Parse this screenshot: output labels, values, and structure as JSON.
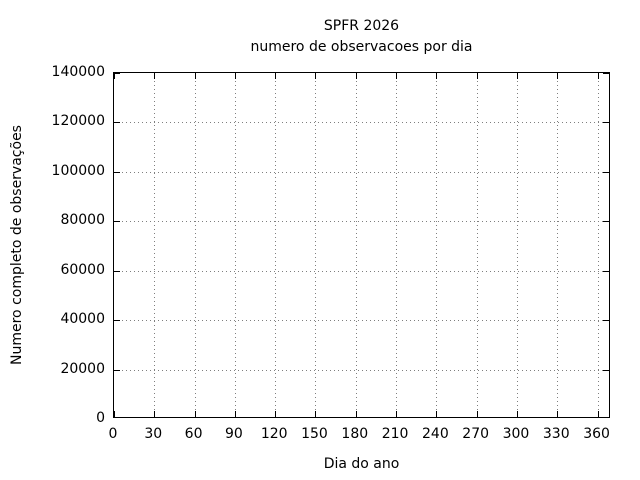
{
  "chart_data": {
    "type": "line",
    "title": "SPFR 2026",
    "subtitle": "numero de observacoes por dia",
    "xlabel": "Dia do ano",
    "ylabel": "Numero completo de observações",
    "xlim": [
      0,
      370
    ],
    "ylim": [
      0,
      140000
    ],
    "xticks": [
      0,
      30,
      60,
      90,
      120,
      150,
      180,
      210,
      240,
      270,
      300,
      330,
      360
    ],
    "yticks": [
      0,
      20000,
      40000,
      60000,
      80000,
      100000,
      120000,
      140000
    ],
    "grid": true,
    "grid_style": "dotted",
    "legend": false,
    "series": []
  },
  "colors": {
    "background": "#ffffff",
    "text": "#000000",
    "border": "#000000",
    "grid": "#7f7f7f"
  }
}
